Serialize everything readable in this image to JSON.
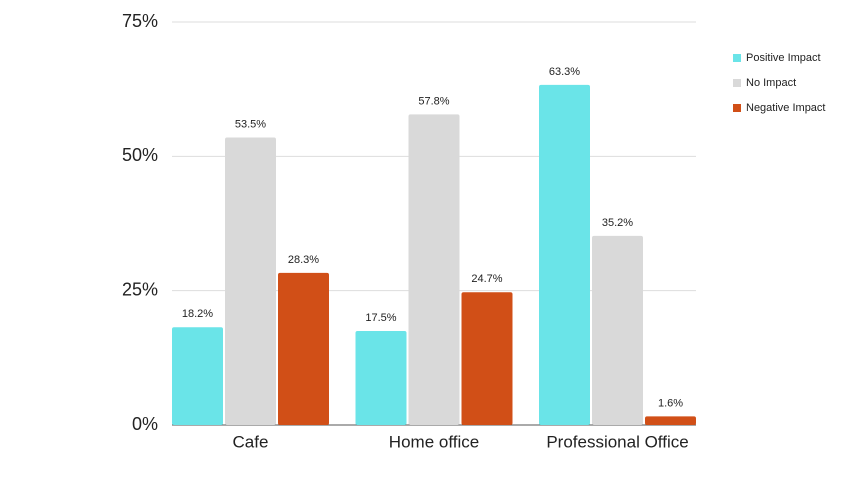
{
  "chart_data": {
    "type": "bar",
    "categories": [
      "Cafe",
      "Home office",
      "Professional Office"
    ],
    "series": [
      {
        "name": "Positive Impact",
        "color": "#6ae4e8",
        "values": [
          18.2,
          17.5,
          63.3
        ],
        "value_labels": [
          "18.2%",
          "17.5%",
          "63.3%"
        ]
      },
      {
        "name": "No Impact",
        "color": "#d9d9d9",
        "values": [
          53.5,
          57.8,
          35.2
        ],
        "value_labels": [
          "53.5%",
          "57.8%",
          "35.2%"
        ]
      },
      {
        "name": "Negative Impact",
        "color": "#d14f17",
        "values": [
          28.3,
          24.7,
          1.6
        ],
        "value_labels": [
          "28.3%",
          "24.7%",
          "1.6%"
        ]
      }
    ],
    "ylim": [
      0,
      75
    ],
    "yticks": [
      {
        "value": 0,
        "label": "0%"
      },
      {
        "value": 25,
        "label": "25%"
      },
      {
        "value": 50,
        "label": "50%"
      },
      {
        "value": 75,
        "label": "75%"
      }
    ],
    "grid": true,
    "legend": "right"
  }
}
